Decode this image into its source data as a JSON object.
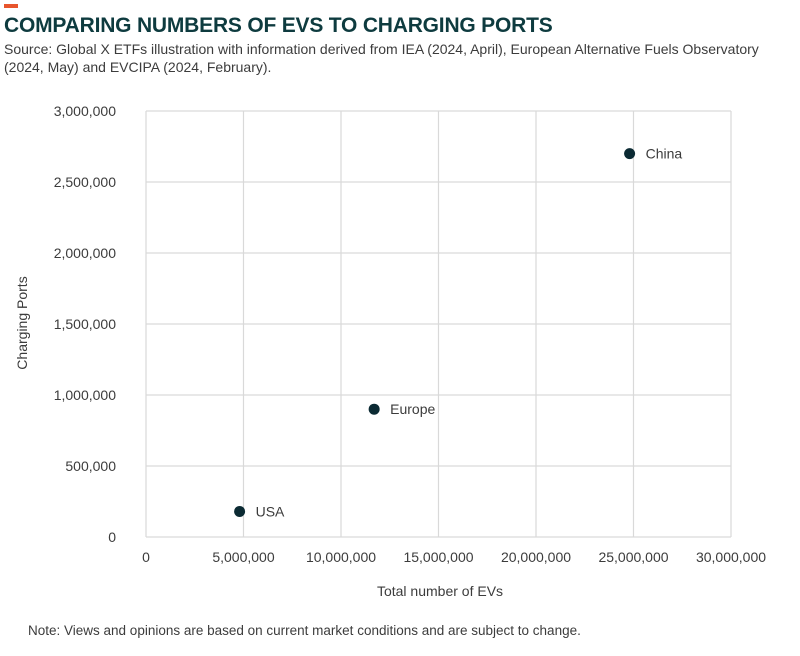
{
  "header": {
    "title": "COMPARING NUMBERS OF EVS TO CHARGING PORTS",
    "source": "Source: Global X ETFs illustration with information derived from IEA (2024, April), European Alternative Fuels Observatory (2024, May) and EVCIPA (2024, February)."
  },
  "footer": {
    "note": "Note: Views and opinions are based on current market conditions and are subject to change."
  },
  "colors": {
    "accent": "#e8552d",
    "title": "#0e3b3f",
    "point": "#0b2a33",
    "grid": "#d9d9d9"
  },
  "chart_data": {
    "type": "scatter",
    "title": "",
    "xlabel": "Total number of EVs",
    "ylabel": "Charging Ports",
    "xlim": [
      0,
      30000000
    ],
    "ylim": [
      0,
      3000000
    ],
    "xticks": [
      {
        "value": 0,
        "label": "0"
      },
      {
        "value": 5000000,
        "label": "5,000,000"
      },
      {
        "value": 10000000,
        "label": "10,000,000"
      },
      {
        "value": 15000000,
        "label": "15,000,000"
      },
      {
        "value": 20000000,
        "label": "20,000,000"
      },
      {
        "value": 25000000,
        "label": "25,000,000"
      },
      {
        "value": 30000000,
        "label": "30,000,000"
      }
    ],
    "yticks": [
      {
        "value": 0,
        "label": "0"
      },
      {
        "value": 500000,
        "label": "500,000"
      },
      {
        "value": 1000000,
        "label": "1,000,000"
      },
      {
        "value": 1500000,
        "label": "1,500,000"
      },
      {
        "value": 2000000,
        "label": "2,000,000"
      },
      {
        "value": 2500000,
        "label": "2,500,000"
      },
      {
        "value": 3000000,
        "label": "3,000,000"
      }
    ],
    "grid": true,
    "points": [
      {
        "label": "China",
        "x": 24800000,
        "y": 2700000
      },
      {
        "label": "Europe",
        "x": 11700000,
        "y": 900000
      },
      {
        "label": "USA",
        "x": 4800000,
        "y": 180000
      }
    ]
  }
}
